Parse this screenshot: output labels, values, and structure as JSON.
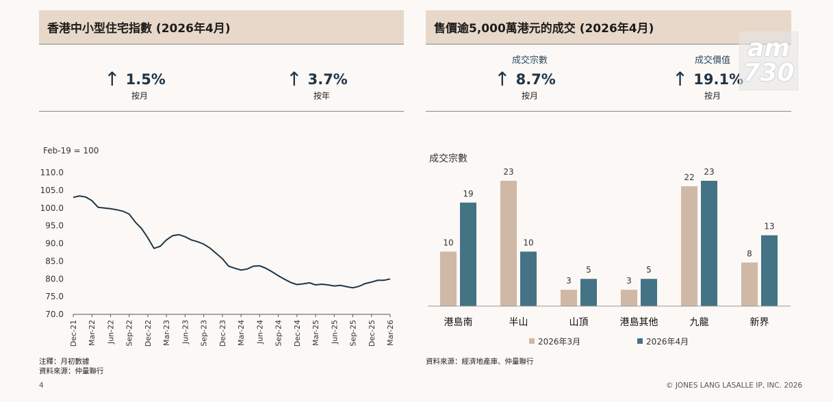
{
  "left_panel": {
    "title": "香港中小型住宅指數 (2026年4月)",
    "kpis": [
      {
        "value": "1.5%",
        "label": "按月",
        "arrow": "↑"
      },
      {
        "value": "3.7%",
        "label": "按年",
        "arrow": "↑"
      }
    ],
    "note_line1": "注釋：月初數據",
    "note_line2": "資料來源：仲量聯行"
  },
  "right_panel": {
    "title": "售價逾5,000萬港元的成交 (2026年4月)",
    "kpis": [
      {
        "caption": "成交宗數",
        "value": "8.7%",
        "label": "按月",
        "arrow": "↑"
      },
      {
        "caption": "成交價值",
        "value": "19.1%",
        "label": "按月",
        "arrow": "↑"
      }
    ],
    "source": "資料來源：經濟地產庫、仲量聯行"
  },
  "footer": {
    "page_number": "4",
    "copyright": "© JONES LANG LASALLE IP, INC. 2026"
  },
  "logo": {
    "line1": "am",
    "line2": "730"
  },
  "colors": {
    "header_bg": "#e8d8c9",
    "line": "#1d3546",
    "bar_march": "#cfb8a6",
    "bar_april": "#437384"
  },
  "chart_data": [
    {
      "type": "line",
      "index_note": "Feb-19 = 100",
      "title": "",
      "xlabel": "",
      "ylabel": "",
      "ylim": [
        70,
        110
      ],
      "yticks": [
        "110.0",
        "105.0",
        "100.0",
        "95.0",
        "90.0",
        "85.0",
        "80.0",
        "75.0",
        "70.0"
      ],
      "xticks": [
        "Dec-21",
        "Mar-22",
        "Jun-22",
        "Sep-22",
        "Dec-22",
        "Mar-23",
        "Jun-23",
        "Sep-23",
        "Dec-23",
        "Mar-24",
        "Jun-24",
        "Sep-24",
        "Dec-24",
        "Mar-25",
        "Jun-25",
        "Sep-25",
        "Dec-25",
        "Mar-26"
      ],
      "grid": false,
      "x_start": "Dec-21",
      "series": [
        {
          "values": [
            103.0,
            103.4,
            103.1,
            102.1,
            100.2,
            100.0,
            99.8,
            99.5,
            99.1,
            98.3,
            96.0,
            94.2,
            91.6,
            88.6,
            89.2,
            91.0,
            92.2,
            92.5,
            91.9,
            91.0,
            90.5,
            89.8,
            88.7,
            87.2,
            85.7,
            83.6,
            83.0,
            82.5,
            82.8,
            83.6,
            83.7,
            83.0,
            82.0,
            80.9,
            79.9,
            79.0,
            78.4,
            78.6,
            78.9,
            78.3,
            78.5,
            78.3,
            78.0,
            78.2,
            77.8,
            77.5,
            77.9,
            78.7,
            79.1,
            79.6,
            79.6,
            80.0
          ]
        }
      ]
    },
    {
      "type": "bar",
      "title": "",
      "ylabel": "成交宗數",
      "xlabel": "",
      "categories": [
        "港島南",
        "半山",
        "山頂",
        "港島其他",
        "九龍",
        "新界"
      ],
      "series": [
        {
          "name": "2026年3月",
          "values": [
            10,
            23,
            3,
            3,
            22,
            8
          ]
        },
        {
          "name": "2026年4月",
          "values": [
            19,
            10,
            5,
            5,
            23,
            13
          ]
        }
      ],
      "ylim": [
        0,
        23
      ],
      "legend": "bottom"
    }
  ]
}
